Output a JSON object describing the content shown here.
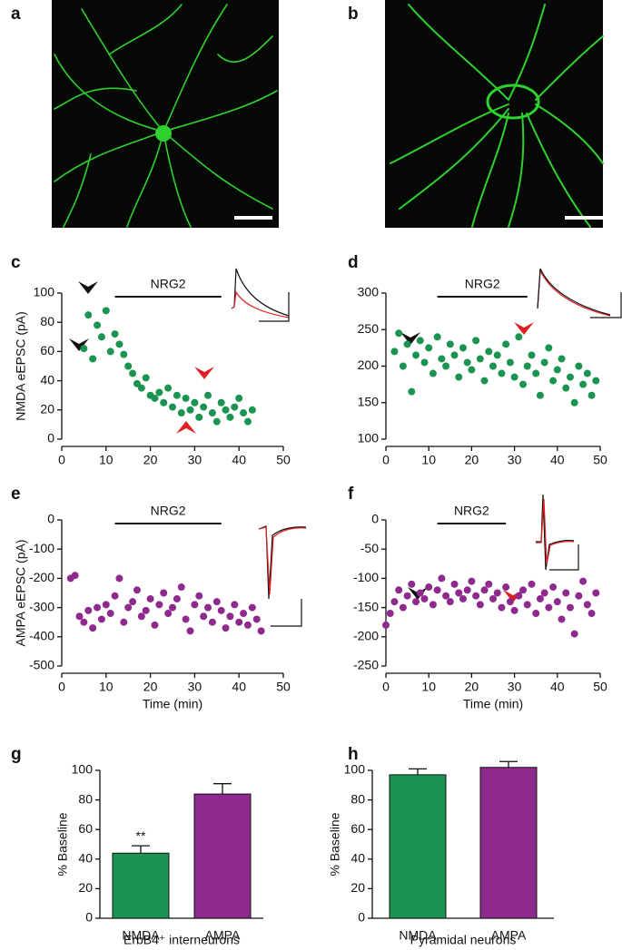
{
  "images": [
    {
      "panel": "a"
    },
    {
      "panel": "b"
    }
  ],
  "chart_data": [
    {
      "type": "scatter",
      "panel": "c",
      "ylabel": "NMDA eEPSC (pA)",
      "color": "#1a9450",
      "annotation": {
        "text": "NRG2",
        "xrange": [
          12,
          36
        ]
      },
      "x": [
        5,
        6,
        7,
        8,
        9,
        10,
        11,
        12,
        13,
        14,
        15,
        16,
        17,
        18,
        19,
        20,
        21,
        22,
        23,
        24,
        25,
        26,
        27,
        28,
        29,
        30,
        31,
        32,
        33,
        34,
        35,
        36,
        37,
        38,
        39,
        40,
        41,
        42,
        43
      ],
      "values": [
        62,
        85,
        55,
        78,
        70,
        88,
        60,
        72,
        65,
        58,
        50,
        45,
        38,
        35,
        42,
        30,
        28,
        32,
        25,
        35,
        22,
        30,
        18,
        28,
        20,
        25,
        15,
        22,
        30,
        18,
        12,
        25,
        20,
        15,
        22,
        28,
        18,
        12,
        20
      ],
      "xlim": [
        0,
        50
      ],
      "xticks": [
        0,
        10,
        20,
        30,
        40,
        50
      ],
      "ylim": [
        0,
        100
      ],
      "yticks": [
        0,
        20,
        40,
        60,
        80,
        100
      ]
    },
    {
      "type": "scatter",
      "panel": "d",
      "color": "#1a9450",
      "annotation": {
        "text": "NRG2",
        "xrange": [
          12,
          33
        ]
      },
      "x": [
        2,
        3,
        4,
        5,
        6,
        7,
        8,
        9,
        10,
        11,
        12,
        13,
        14,
        15,
        16,
        17,
        18,
        19,
        20,
        21,
        22,
        23,
        24,
        25,
        26,
        27,
        28,
        29,
        30,
        31,
        32,
        33,
        34,
        35,
        36,
        37,
        38,
        39,
        40,
        41,
        42,
        43,
        44,
        45,
        46,
        47,
        48,
        49
      ],
      "values": [
        220,
        245,
        200,
        230,
        165,
        215,
        235,
        205,
        225,
        190,
        240,
        210,
        200,
        230,
        215,
        185,
        225,
        205,
        195,
        235,
        210,
        180,
        220,
        200,
        215,
        190,
        230,
        205,
        185,
        240,
        175,
        200,
        215,
        190,
        160,
        205,
        225,
        180,
        195,
        210,
        170,
        185,
        150,
        200,
        175,
        190,
        160,
        180
      ],
      "xlim": [
        0,
        50
      ],
      "xticks": [
        0,
        10,
        20,
        30,
        40,
        50
      ],
      "ylim": [
        100,
        300
      ],
      "yticks": [
        100,
        150,
        200,
        250,
        300
      ]
    },
    {
      "type": "scatter",
      "panel": "e",
      "ylabel": "AMPA eEPSC (pA)",
      "xlabel": "Time (min)",
      "color": "#8e2a8e",
      "annotation": {
        "text": "NRG2",
        "xrange": [
          12,
          36
        ]
      },
      "x": [
        2,
        3,
        4,
        5,
        6,
        7,
        8,
        9,
        10,
        11,
        12,
        13,
        14,
        15,
        16,
        17,
        18,
        19,
        20,
        21,
        22,
        23,
        24,
        25,
        26,
        27,
        28,
        29,
        30,
        31,
        32,
        33,
        34,
        35,
        36,
        37,
        38,
        39,
        40,
        41,
        42,
        43,
        44,
        45
      ],
      "values": [
        -200,
        -190,
        -330,
        -350,
        -310,
        -370,
        -300,
        -340,
        -290,
        -320,
        -260,
        -200,
        -350,
        -300,
        -280,
        -240,
        -330,
        -310,
        -270,
        -360,
        -290,
        -250,
        -320,
        -300,
        -270,
        -230,
        -340,
        -380,
        -290,
        -260,
        -330,
        -300,
        -350,
        -280,
        -310,
        -370,
        -330,
        -290,
        -350,
        -320,
        -360,
        -300,
        -340,
        -380
      ],
      "xlim": [
        0,
        50
      ],
      "xticks": [
        0,
        10,
        20,
        30,
        40,
        50
      ],
      "ylim": [
        -500,
        0
      ],
      "yticks": [
        -500,
        -400,
        -300,
        -200,
        -100,
        0
      ]
    },
    {
      "type": "scatter",
      "panel": "f",
      "xlabel": "Time (min)",
      "color": "#8e2a8e",
      "annotation": {
        "text": "NRG2",
        "xrange": [
          12,
          28
        ]
      },
      "x": [
        0,
        1,
        2,
        3,
        4,
        5,
        6,
        7,
        8,
        9,
        10,
        11,
        12,
        13,
        14,
        15,
        16,
        17,
        18,
        19,
        20,
        21,
        22,
        23,
        24,
        25,
        26,
        27,
        28,
        29,
        30,
        31,
        32,
        33,
        34,
        35,
        36,
        37,
        38,
        39,
        40,
        41,
        42,
        43,
        44,
        45,
        46,
        47,
        48,
        49
      ],
      "values": [
        -180,
        -160,
        -140,
        -120,
        -150,
        -130,
        -110,
        -140,
        -125,
        -135,
        -115,
        -145,
        -120,
        -100,
        -130,
        -140,
        -110,
        -125,
        -135,
        -120,
        -105,
        -130,
        -145,
        -120,
        -110,
        -135,
        -125,
        -150,
        -115,
        -140,
        -155,
        -130,
        -120,
        -145,
        -110,
        -160,
        -135,
        -125,
        -150,
        -115,
        -140,
        -170,
        -125,
        -150,
        -195,
        -130,
        -105,
        -145,
        -160,
        -125
      ],
      "xlim": [
        0,
        50
      ],
      "xticks": [
        0,
        10,
        20,
        30,
        40,
        50
      ],
      "ylim": [
        -250,
        0
      ],
      "yticks": [
        -250,
        -200,
        -150,
        -100,
        -50,
        0
      ]
    },
    {
      "type": "bar",
      "panel": "g",
      "ylabel": "% Baseline",
      "xlabel": "ErbB4⁺ interneurons",
      "categories": [
        "NMDA",
        "AMPA"
      ],
      "values": [
        44,
        84
      ],
      "errors": [
        5,
        7
      ],
      "colors": [
        "#1a9450",
        "#8e2a8e"
      ],
      "annotation": {
        "text": "**",
        "category": "NMDA"
      },
      "ylim": [
        0,
        100
      ],
      "yticks": [
        0,
        20,
        40,
        60,
        80,
        100
      ]
    },
    {
      "type": "bar",
      "panel": "h",
      "ylabel": "% Baseline",
      "xlabel": "Pyramidal neurons",
      "categories": [
        "NMDA",
        "AMPA"
      ],
      "values": [
        97,
        102
      ],
      "errors": [
        4,
        4
      ],
      "colors": [
        "#1a9450",
        "#8e2a8e"
      ],
      "ylim": [
        0,
        100
      ],
      "yticks": [
        0,
        20,
        40,
        60,
        80,
        100
      ]
    }
  ]
}
